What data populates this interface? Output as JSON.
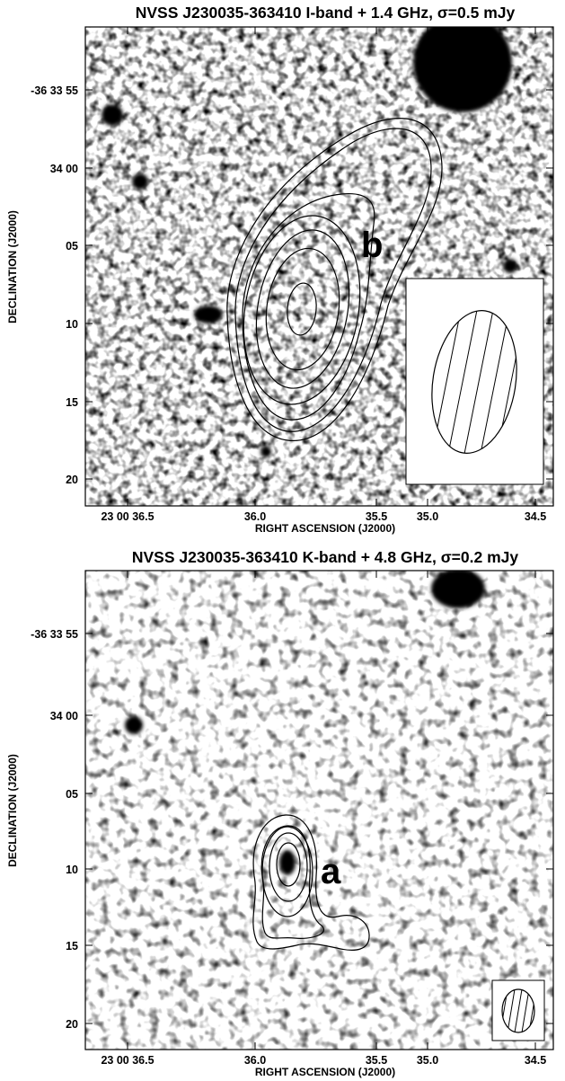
{
  "panels": [
    {
      "title": "NVSS J230035-363410 I-band + 1.4 GHz, σ=0.5 mJy",
      "component_label": "b",
      "xlabel": "RIGHT ASCENSION (J2000)",
      "ylabel": "DECLINATION (J2000)",
      "x_ticks": [
        "23 00 36.5",
        "36.0",
        "35.5",
        "35.0",
        "34.5"
      ],
      "y_ticks": [
        "-36 33 55",
        "34 00",
        "05",
        "10",
        "15",
        "20"
      ]
    },
    {
      "title": "NVSS J230035-363410 K-band + 4.8 GHz, σ=0.2 mJy",
      "component_label": "a",
      "xlabel": "RIGHT ASCENSION (J2000)",
      "ylabel": "DECLINATION (J2000)",
      "x_ticks": [
        "23 00 36.5",
        "36.0",
        "35.5",
        "35.0",
        "34.5"
      ],
      "y_ticks": [
        "-36 33 55",
        "34 00",
        "05",
        "10",
        "15",
        "20"
      ]
    }
  ]
}
